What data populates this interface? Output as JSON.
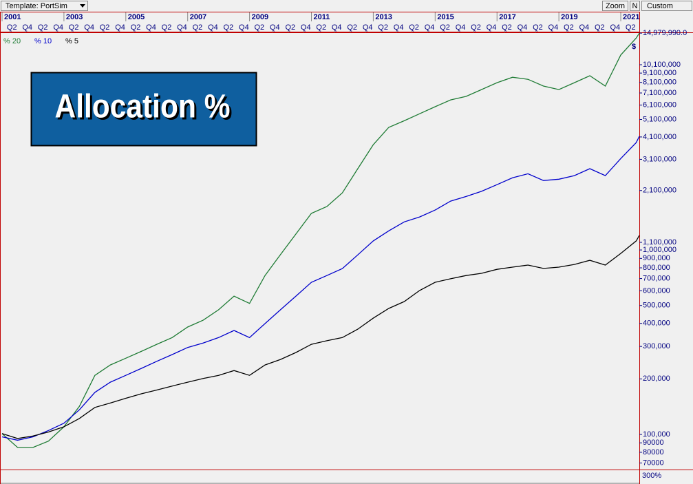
{
  "toolbar": {
    "template": "Template: PortSim",
    "zoom": "Zoom",
    "n": "N",
    "custom": "Custom"
  },
  "chart_data": {
    "type": "line",
    "annotation": "Allocation %",
    "marker_label": "$",
    "lower_panel_label": "300%",
    "log_scale": true,
    "x": [
      2001,
      2001.5,
      2002,
      2002.5,
      2003,
      2003.5,
      2004,
      2004.5,
      2005,
      2005.5,
      2006,
      2006.5,
      2007,
      2007.5,
      2008,
      2008.5,
      2009,
      2009.5,
      2010,
      2010.5,
      2011,
      2011.5,
      2012,
      2012.5,
      2013,
      2013.5,
      2014,
      2014.5,
      2015,
      2015.5,
      2016,
      2016.5,
      2017,
      2017.5,
      2018,
      2018.5,
      2019,
      2019.5,
      2020,
      2020.5,
      2021,
      2021.5,
      2021.6
    ],
    "series": [
      {
        "name": "% 20",
        "color": "#1e7b34",
        "values": [
          101000,
          85000,
          85000,
          92000,
          110000,
          142000,
          209000,
          238000,
          259000,
          282000,
          308000,
          335000,
          382000,
          416000,
          474000,
          562000,
          513000,
          727000,
          945000,
          1220000,
          1580000,
          1720000,
          2040000,
          2760000,
          3720000,
          4620000,
          5020000,
          5480000,
          5980000,
          6510000,
          6800000,
          7410000,
          8070000,
          8640000,
          8420000,
          7740000,
          7410000,
          8070000,
          8800000,
          7740000,
          11400000,
          14100000,
          14979990
        ]
      },
      {
        "name": "% 10",
        "color": "#0000cc",
        "values": [
          97000,
          93000,
          97000,
          105000,
          115000,
          136000,
          169000,
          192000,
          209000,
          228000,
          249000,
          271000,
          296000,
          313000,
          335000,
          366000,
          335000,
          399000,
          474000,
          562000,
          668000,
          727000,
          793000,
          941000,
          1120000,
          1270000,
          1420000,
          1510000,
          1646000,
          1840000,
          1950000,
          2080000,
          2260000,
          2460000,
          2590000,
          2380000,
          2420000,
          2530000,
          2760000,
          2530000,
          3130000,
          3820000,
          4130000
        ]
      },
      {
        "name": "% 5",
        "color": "#000000",
        "values": [
          101000,
          95000,
          98000,
          103000,
          110000,
          122000,
          140000,
          148000,
          157000,
          166000,
          174000,
          183000,
          192000,
          201000,
          209000,
          222000,
          209000,
          238000,
          255000,
          278000,
          308000,
          322000,
          335000,
          372000,
          427000,
          482000,
          525000,
          603000,
          668000,
          698000,
          727000,
          747000,
          785000,
          807000,
          828000,
          794000,
          807000,
          835000,
          879000,
          828000,
          958000,
          1120000,
          1200000
        ]
      }
    ],
    "xlim": [
      2001,
      2021.6
    ],
    "xticks": [
      2001,
      2003,
      2005,
      2007,
      2009,
      2011,
      2013,
      2015,
      2017,
      2019,
      2021
    ],
    "quarter_ticks": [
      {
        "value": 2001.25,
        "label": "Q2"
      },
      {
        "value": 2001.75,
        "label": "Q4"
      },
      {
        "value": 2002.25,
        "label": "Q2"
      },
      {
        "value": 2002.75,
        "label": "Q4"
      },
      {
        "value": 2003.25,
        "label": "Q2"
      },
      {
        "value": 2003.75,
        "label": "Q4"
      },
      {
        "value": 2004.25,
        "label": "Q2"
      },
      {
        "value": 2004.75,
        "label": "Q4"
      },
      {
        "value": 2005.25,
        "label": "Q2"
      },
      {
        "value": 2005.75,
        "label": "Q4"
      },
      {
        "value": 2006.25,
        "label": "Q2"
      },
      {
        "value": 2006.75,
        "label": "Q4"
      },
      {
        "value": 2007.25,
        "label": "Q2"
      },
      {
        "value": 2007.75,
        "label": "Q4"
      },
      {
        "value": 2008.25,
        "label": "Q2"
      },
      {
        "value": 2008.75,
        "label": "Q4"
      },
      {
        "value": 2009.25,
        "label": "Q2"
      },
      {
        "value": 2009.75,
        "label": "Q4"
      },
      {
        "value": 2010.25,
        "label": "Q2"
      },
      {
        "value": 2010.75,
        "label": "Q4"
      },
      {
        "value": 2011.25,
        "label": "Q2"
      },
      {
        "value": 2011.75,
        "label": "Q4"
      },
      {
        "value": 2012.25,
        "label": "Q2"
      },
      {
        "value": 2012.75,
        "label": "Q4"
      },
      {
        "value": 2013.25,
        "label": "Q2"
      },
      {
        "value": 2013.75,
        "label": "Q4"
      },
      {
        "value": 2014.25,
        "label": "Q2"
      },
      {
        "value": 2014.75,
        "label": "Q4"
      },
      {
        "value": 2015.25,
        "label": "Q2"
      },
      {
        "value": 2015.75,
        "label": "Q4"
      },
      {
        "value": 2016.25,
        "label": "Q2"
      },
      {
        "value": 2016.75,
        "label": "Q4"
      },
      {
        "value": 2017.25,
        "label": "Q2"
      },
      {
        "value": 2017.75,
        "label": "Q4"
      },
      {
        "value": 2018.25,
        "label": "Q2"
      },
      {
        "value": 2018.75,
        "label": "Q4"
      },
      {
        "value": 2019.25,
        "label": "Q2"
      },
      {
        "value": 2019.75,
        "label": "Q4"
      },
      {
        "value": 2020.25,
        "label": "Q2"
      },
      {
        "value": 2020.75,
        "label": "Q4"
      },
      {
        "value": 2021.25,
        "label": "Q2"
      }
    ],
    "ylim": [
      64500,
      15000000
    ],
    "yticks": [
      {
        "value": 14979990,
        "label": "14,979,990.0"
      },
      {
        "value": 10100000,
        "label": "10,100,000"
      },
      {
        "value": 9100000,
        "label": "9,100,000"
      },
      {
        "value": 8100000,
        "label": "8,100,000"
      },
      {
        "value": 7100000,
        "label": "7,100,000"
      },
      {
        "value": 6100000,
        "label": "6,100,000"
      },
      {
        "value": 5100000,
        "label": "5,100,000"
      },
      {
        "value": 4100000,
        "label": "4,100,000"
      },
      {
        "value": 3100000,
        "label": "3,100,000"
      },
      {
        "value": 2100000,
        "label": "2,100,000"
      },
      {
        "value": 1100000,
        "label": "1,100,000"
      },
      {
        "value": 1000000,
        "label": "1,000,000"
      },
      {
        "value": 900000,
        "label": "900,000"
      },
      {
        "value": 800000,
        "label": "800,000"
      },
      {
        "value": 700000,
        "label": "700,000"
      },
      {
        "value": 600000,
        "label": "600,000"
      },
      {
        "value": 500000,
        "label": "500,000"
      },
      {
        "value": 400000,
        "label": "400,000"
      },
      {
        "value": 300000,
        "label": "300,000"
      },
      {
        "value": 200000,
        "label": "200,000"
      },
      {
        "value": 100000,
        "label": "100,000"
      },
      90000,
      80000,
      70000
    ]
  }
}
